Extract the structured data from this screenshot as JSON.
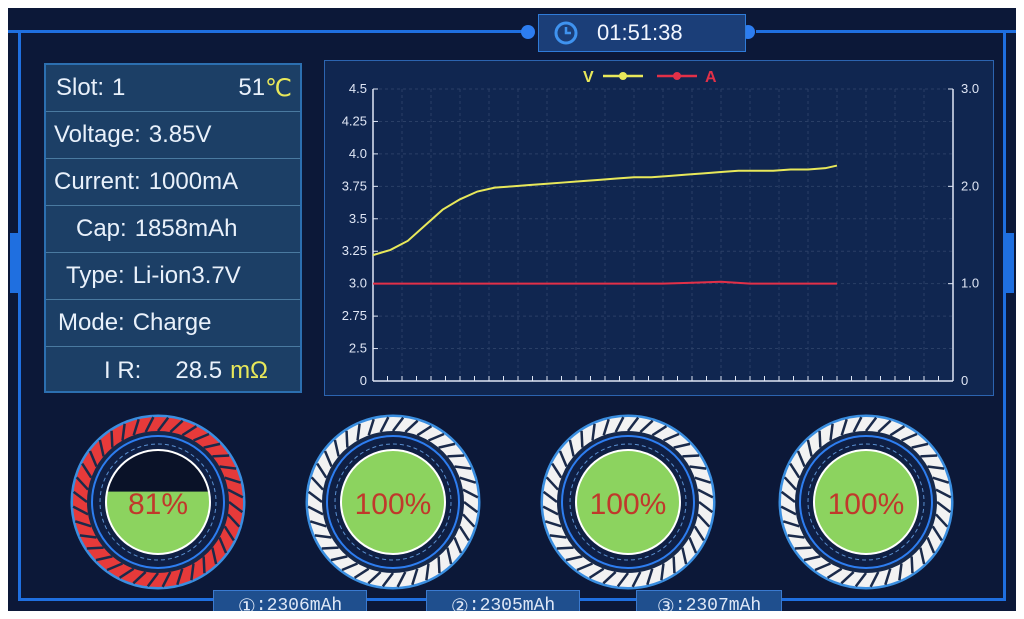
{
  "clock": {
    "time": "01:51:38",
    "icon": "clock-icon"
  },
  "info": {
    "slot_label": "Slot:",
    "slot_value": "1",
    "temp_value": "51",
    "temp_unit": "℃",
    "voltage_label": "Voltage:",
    "voltage_value": "3.85V",
    "current_label": "Current:",
    "current_value": "1000mA",
    "cap_label": "Cap:",
    "cap_value": "1858mAh",
    "type_label": "Type:",
    "type_value": "Li-ion3.7V",
    "mode_label": "Mode:",
    "mode_value": "Charge",
    "ir_label": "I R:",
    "ir_value": "28.5",
    "ir_unit": "mΩ"
  },
  "chart_data": {
    "type": "line",
    "legend": [
      {
        "name": "V",
        "color": "#e8e85a"
      },
      {
        "name": "A",
        "color": "#e23048"
      }
    ],
    "left_ticks": [
      "4.5",
      "4.25",
      "4.0",
      "3.75",
      "3.5",
      "3.25",
      "3.0",
      "2.75",
      "2.5",
      "0"
    ],
    "right_ticks": [
      "3.0",
      "2.0",
      "1.0",
      "0"
    ],
    "series": [
      {
        "name": "V",
        "color": "#e8e85a",
        "x": [
          0,
          3,
          6,
          9,
          12,
          15,
          18,
          21,
          24,
          27,
          30,
          33,
          36,
          39,
          42,
          45,
          48,
          51,
          54,
          57,
          60,
          63,
          66,
          69,
          72,
          75,
          78,
          80
        ],
        "values": [
          3.22,
          3.26,
          3.33,
          3.45,
          3.57,
          3.65,
          3.71,
          3.74,
          3.75,
          3.76,
          3.77,
          3.78,
          3.79,
          3.8,
          3.81,
          3.82,
          3.82,
          3.83,
          3.84,
          3.85,
          3.86,
          3.87,
          3.87,
          3.87,
          3.88,
          3.88,
          3.89,
          3.91
        ]
      },
      {
        "name": "A",
        "color": "#e23048",
        "x": [
          0,
          10,
          20,
          30,
          40,
          50,
          55,
          60,
          65,
          70,
          80
        ],
        "values": [
          1.0,
          1.0,
          1.0,
          1.0,
          1.0,
          1.0,
          1.01,
          1.02,
          1.0,
          1.0,
          1.0
        ]
      }
    ],
    "grid": true
  },
  "slots": [
    {
      "percent": "81%",
      "level": 0.6,
      "ring_color": "#e63a3a"
    },
    {
      "percent": "100%",
      "level": 1.0,
      "ring_color": "#f2f2f2"
    },
    {
      "percent": "100%",
      "level": 1.0,
      "ring_color": "#f2f2f2"
    },
    {
      "percent": "100%",
      "level": 1.0,
      "ring_color": "#f2f2f2"
    }
  ],
  "capacities": [
    {
      "number": "①",
      "text": "2306mAh"
    },
    {
      "number": "②",
      "text": "2305mAh"
    },
    {
      "number": "③",
      "text": "2307mAh"
    }
  ],
  "colors": {
    "accent": "#2d7df0",
    "fill": "#8cd35f",
    "text_highlight": "#e8e85a",
    "percent_text": "#c0392b"
  }
}
